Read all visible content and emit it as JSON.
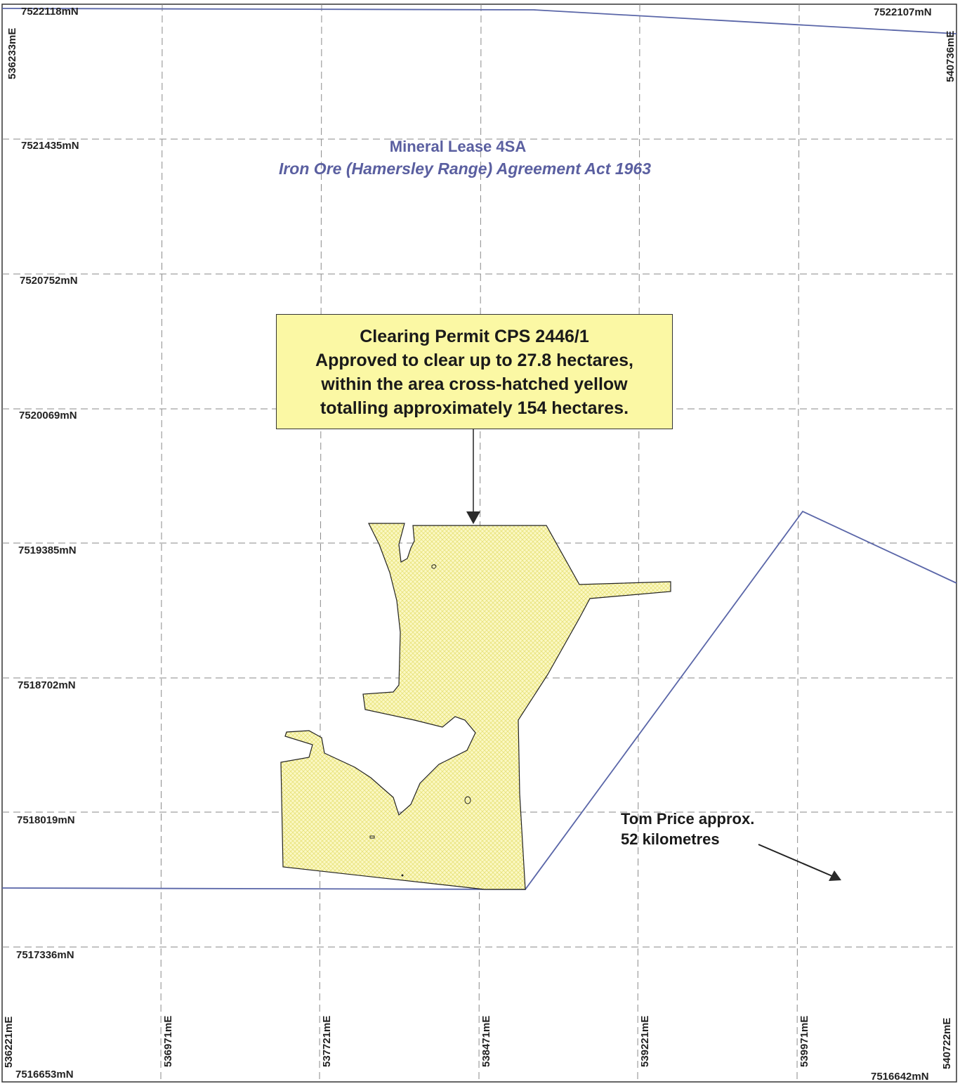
{
  "map": {
    "title": "Mineral Lease 4SA",
    "subtitle": "Iron Ore (Hamersley Range) Agreement Act 1963",
    "corners": {
      "top_left_n": "7522118mN",
      "top_left_e": "536233mE",
      "top_right_n": "7522107mN",
      "top_right_e": "540736mE",
      "bottom_left_e": "536221mE",
      "bottom_left_n": "7516653mN",
      "bottom_right_e": "540722mE",
      "bottom_right_n": "7516642mN"
    },
    "northings": [
      "7521435mN",
      "7520752mN",
      "7520069mN",
      "7519385mN",
      "7518702mN",
      "7518019mN",
      "7517336mN"
    ],
    "eastings": [
      "536971mE",
      "537721mE",
      "538471mE",
      "539221mE",
      "539971mE"
    ],
    "permit": {
      "line1": "Clearing Permit CPS 2446/1",
      "line2": "Approved to clear up to 27.8 hectares,",
      "line3": "within the area cross-hatched yellow",
      "line4": "totalling approximately 154 hectares."
    },
    "direction_note": {
      "line1": "Tom Price approx.",
      "line2": "52 kilometres"
    },
    "colors": {
      "lease_boundary": "#5a66a8",
      "clearing_fill": "#fbf8b8",
      "grid": "#8a8a8a",
      "label_box": "#fbf8a4"
    }
  }
}
